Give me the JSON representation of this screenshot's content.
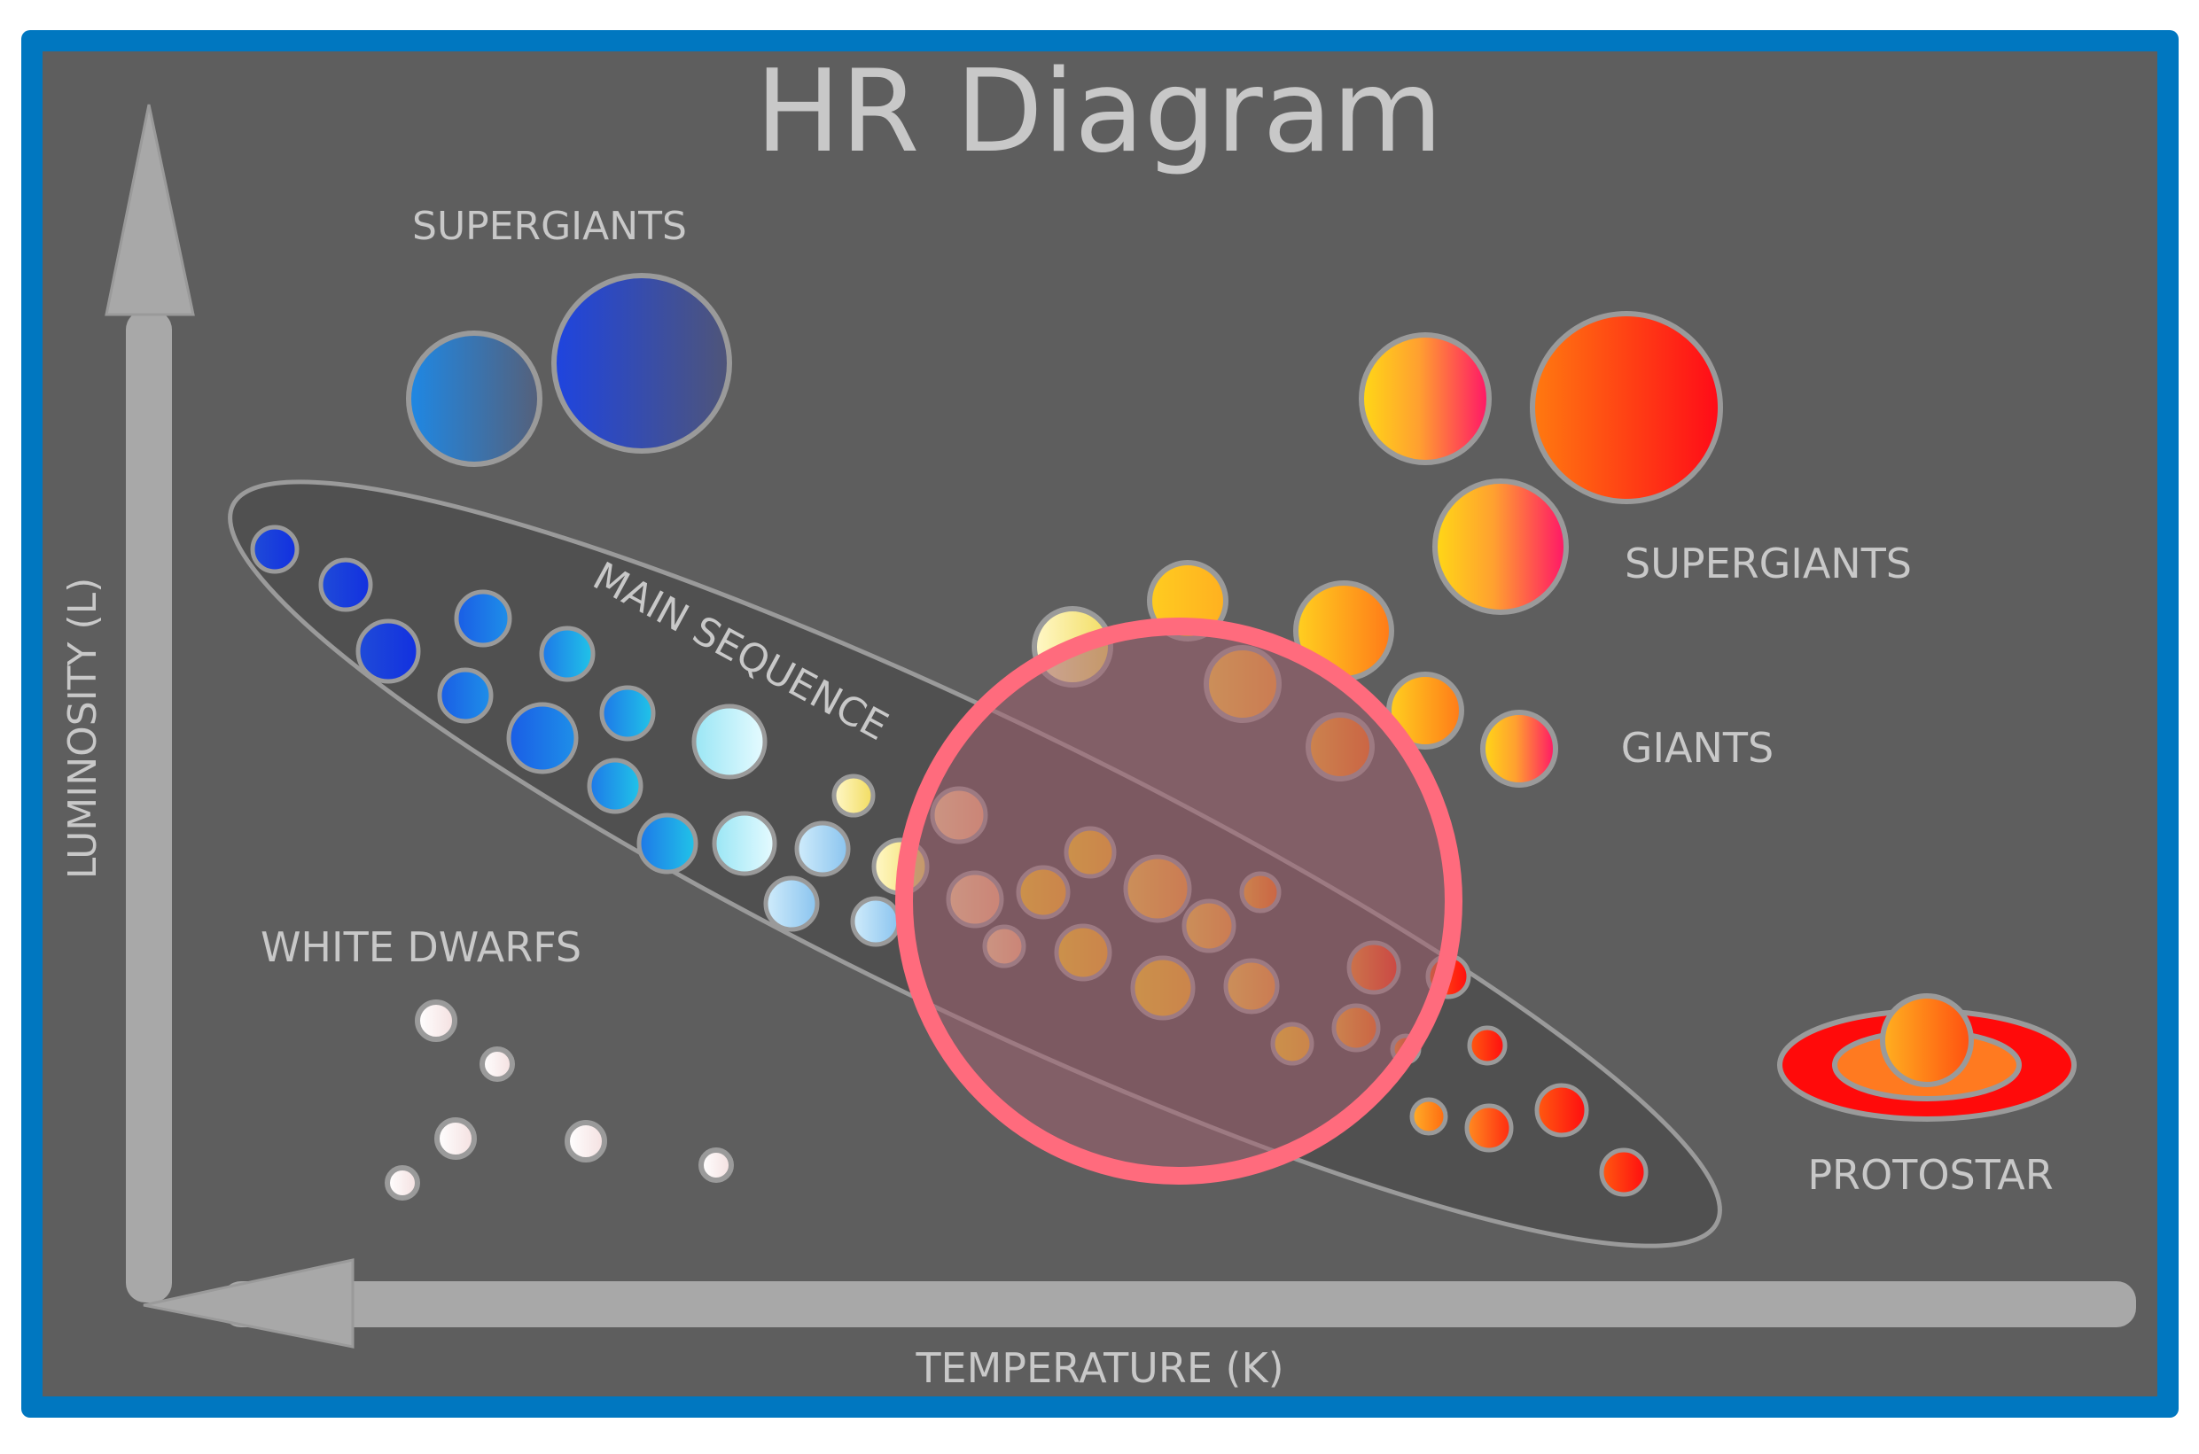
{
  "title": "HR Diagram",
  "axes": {
    "y_label": "LUMINOSITY (L)",
    "x_label": "TEMPERATURE (K)"
  },
  "regions": {
    "main_sequence": "MAIN SEQUENCE",
    "blue_supergiants": "SUPERGIANTS",
    "red_supergiants": "SUPERGIANTS",
    "giants": "GIANTS",
    "white_dwarfs": "WHITE DWARFS",
    "protostar": "PROTOSTAR"
  },
  "colors": {
    "frame": "#0077c0",
    "panel": "#5e5e5e",
    "ellipse_fill": "#505050",
    "axis": "#a8a8a8",
    "label": "#c8c8c8",
    "highlight_ring": "#ff6b7d",
    "highlight_fill": "#a06070"
  }
}
